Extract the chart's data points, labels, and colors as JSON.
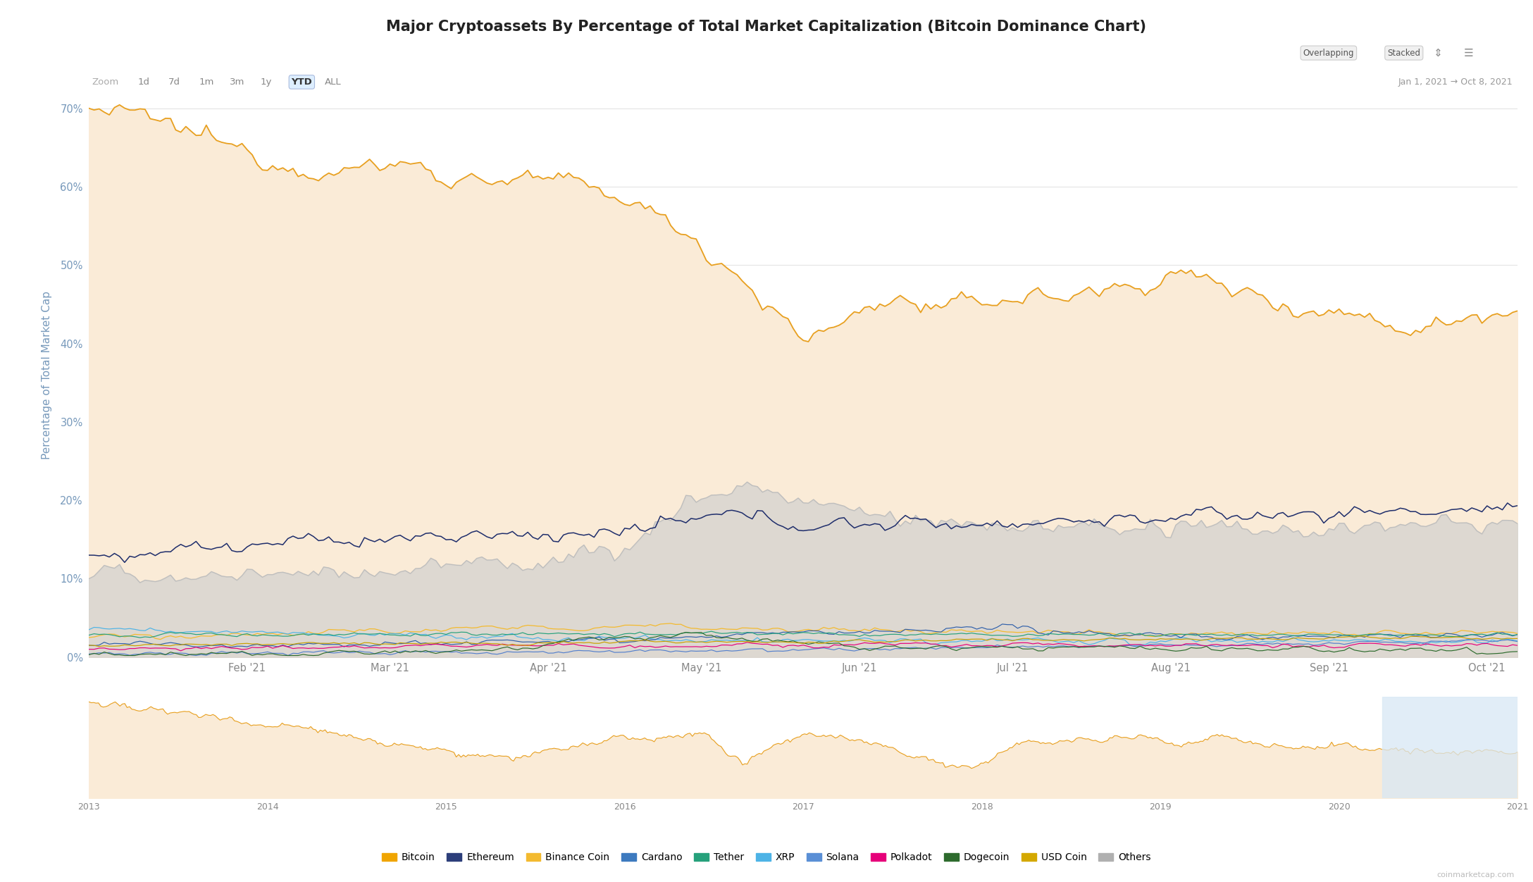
{
  "title": "Major Cryptoassets By Percentage of Total Market Capitalization (Bitcoin Dominance Chart)",
  "ylabel": "Percentage of Total Market Cap",
  "date_range": "Jan 1, 2021 → Oct 8, 2021",
  "watermark": "coinmarketcap.com",
  "legend": [
    {
      "label": "Bitcoin",
      "color": "#f0a500",
      "marker": "o"
    },
    {
      "label": "Ethereum",
      "color": "#2c3e7a",
      "marker": "o"
    },
    {
      "label": "Binance Coin",
      "color": "#f3ba2f",
      "marker": "o"
    },
    {
      "label": "Cardano",
      "color": "#3d7abf",
      "marker": "o"
    },
    {
      "label": "Tether",
      "color": "#26a17b",
      "marker": "o"
    },
    {
      "label": "XRP",
      "color": "#4db3e6",
      "marker": "o"
    },
    {
      "label": "Solana",
      "color": "#5a8fd6",
      "marker": "o"
    },
    {
      "label": "Polkadot",
      "color": "#e6007a",
      "marker": "o"
    },
    {
      "label": "Dogecoin",
      "color": "#2d6b2d",
      "marker": "o"
    },
    {
      "label": "USD Coin",
      "color": "#d4a800",
      "marker": "o"
    },
    {
      "label": "Others",
      "color": "#b0b0b0",
      "marker": "o"
    }
  ],
  "colors": {
    "bitcoin": "#e8a020",
    "ethereum": "#1e2d6b",
    "binance": "#f3ba2f",
    "cardano": "#3060aa",
    "tether": "#26a17b",
    "xrp": "#4db3e6",
    "solana": "#5580cc",
    "polkadot": "#e6007a",
    "dogecoin": "#2d6b2d",
    "usdcoin": "#c8a000",
    "others": "#aaaaaa"
  },
  "btc_fill": "#faebd7",
  "others_fill": "#d8d5d0",
  "grid_color": "#e4e4e4",
  "bg_color": "#ffffff",
  "ytick_color": "#7799bb",
  "xtick_color": "#888888",
  "ylabel_color": "#7799bb",
  "zoom_items": [
    "Zoom",
    "1d",
    "7d",
    "1m",
    "3m",
    "1y",
    "YTD",
    "ALL"
  ],
  "yticks": [
    0,
    10,
    20,
    30,
    40,
    50,
    60,
    70
  ],
  "ylim": [
    0,
    72
  ],
  "month_labels": [
    "Feb '21",
    "Mar '21",
    "Apr '21",
    "May '21",
    "Jun '21",
    "Jul '21",
    "Aug '21",
    "Sep '21",
    "Oct '21"
  ]
}
